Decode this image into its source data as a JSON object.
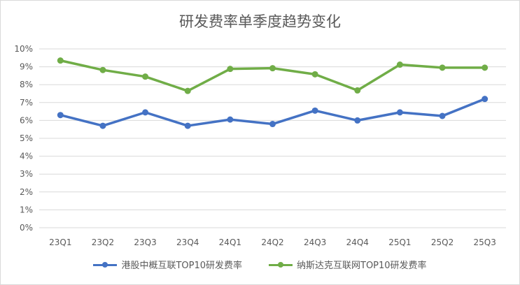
{
  "chart_data": {
    "type": "line",
    "title": "研发费率单季度趋势变化",
    "categories": [
      "23Q1",
      "23Q2",
      "23Q3",
      "23Q4",
      "24Q1",
      "24Q2",
      "24Q3",
      "24Q4",
      "25Q1",
      "25Q2",
      "25Q3"
    ],
    "y_ticks": [
      "0%",
      "1%",
      "2%",
      "3%",
      "4%",
      "5%",
      "6%",
      "7%",
      "8%",
      "9%",
      "10%"
    ],
    "ylim": [
      0,
      10
    ],
    "grid": true,
    "legend_position": "bottom",
    "series": [
      {
        "name": "港股中概互联TOP10研发费率",
        "color": "#4472c4",
        "values": [
          6.3,
          5.7,
          6.45,
          5.7,
          6.05,
          5.8,
          6.55,
          6.0,
          6.45,
          6.25,
          7.2
        ]
      },
      {
        "name": "纳斯达克互联网TOP10研发费率",
        "color": "#70ad47",
        "values": [
          9.35,
          8.82,
          8.45,
          7.65,
          8.88,
          8.92,
          8.58,
          7.68,
          9.12,
          8.95,
          8.95
        ]
      }
    ]
  }
}
